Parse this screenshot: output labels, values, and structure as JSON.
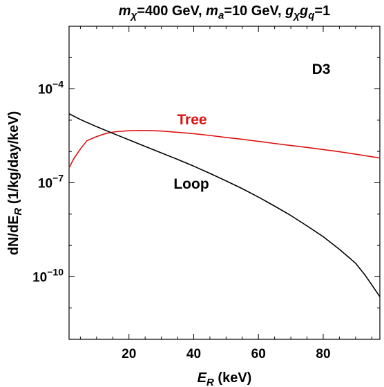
{
  "chart_data": {
    "type": "line",
    "title_parts": [
      {
        "text": "m",
        "italic": true
      },
      {
        "text": "χ",
        "italic": true,
        "sub": true
      },
      {
        "text": "=400 GeV, "
      },
      {
        "text": "m",
        "italic": true
      },
      {
        "text": "a",
        "italic": true,
        "sub": true
      },
      {
        "text": "=10 GeV, "
      },
      {
        "text": "g",
        "italic": true
      },
      {
        "text": "χ",
        "italic": true,
        "sub": true
      },
      {
        "text": "g",
        "italic": true
      },
      {
        "text": "q",
        "italic": true,
        "sub": true
      },
      {
        "text": "=1"
      }
    ],
    "xlabel_parts": [
      {
        "text": "E",
        "italic": true
      },
      {
        "text": "R",
        "italic": true,
        "sub": true
      },
      {
        "text": " (keV)"
      }
    ],
    "ylabel_parts": [
      {
        "text": "dN/dE"
      },
      {
        "text": "R",
        "italic": true,
        "sub": true
      },
      {
        "text": " (1/kg/day/keV)"
      }
    ],
    "xlim": [
      1.5,
      97.5
    ],
    "ylim_log10": [
      -12,
      -2
    ],
    "y_scale": "log",
    "x_ticks": [
      20,
      40,
      60,
      80
    ],
    "y_ticks": [
      {
        "value": 0.0001,
        "base": "10",
        "exp": "−4"
      },
      {
        "value": 1e-07,
        "base": "10",
        "exp": "−7"
      },
      {
        "value": 1e-10,
        "base": "10",
        "exp": "−10"
      }
    ],
    "grid": false,
    "panel_label": "D3",
    "series": [
      {
        "name": "Tree",
        "color": "#dd1111",
        "x": [
          1.5,
          3,
          5,
          7,
          10,
          13,
          16,
          20,
          23,
          26,
          30,
          35,
          40,
          45,
          50,
          55,
          60,
          65,
          70,
          75,
          80,
          85,
          90,
          95,
          97.5
        ],
        "y": [
          3e-07,
          6e-07,
          1.2e-06,
          2.2e-06,
          3e-06,
          3.8e-06,
          4.3e-06,
          4.6e-06,
          4.7e-06,
          4.65e-06,
          4.5e-06,
          4.1e-06,
          3.7e-06,
          3.25e-06,
          2.8e-06,
          2.45e-06,
          2.1e-06,
          1.8e-06,
          1.55e-06,
          1.35e-06,
          1.15e-06,
          9.8e-07,
          8.2e-07,
          6.8e-07,
          6.2e-07
        ]
      },
      {
        "name": "Loop",
        "color": "#000000",
        "x": [
          1.5,
          5,
          10,
          15,
          20,
          25,
          30,
          35,
          40,
          45,
          50,
          55,
          60,
          65,
          70,
          75,
          80,
          85,
          90,
          93,
          95,
          97.5
        ],
        "y": [
          1.6e-05,
          1.05e-05,
          6.2e-06,
          3.8e-06,
          2.35e-06,
          1.45e-06,
          9e-07,
          5.6e-07,
          3.4e-07,
          2e-07,
          1.15e-07,
          6.5e-08,
          3.5e-08,
          1.8e-08,
          9e-09,
          4.2e-09,
          1.9e-09,
          7.5e-10,
          2.7e-10,
          1.1e-10,
          5.5e-11,
          2.3e-11
        ]
      }
    ]
  }
}
